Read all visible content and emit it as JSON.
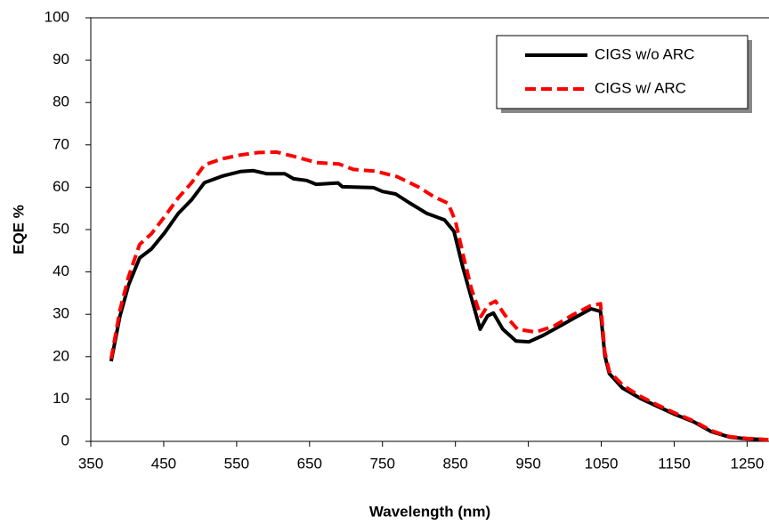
{
  "chart_data": {
    "type": "line",
    "x_label": "Wavelength (nm)",
    "y_label": "EQE %",
    "xlim": [
      350,
      1280
    ],
    "xticks": [
      350,
      450,
      550,
      650,
      750,
      850,
      950,
      1050,
      1150,
      1250
    ],
    "ylim": [
      0,
      100
    ],
    "yticks": [
      0,
      10,
      20,
      30,
      40,
      50,
      60,
      70,
      80,
      90,
      100
    ],
    "legend": "upper right",
    "series": [
      {
        "name": "CIGS w/o ARC",
        "color": "#000000",
        "dash": "solid",
        "x": [
          378,
          390,
          402,
          417,
          433,
          451,
          470,
          488,
          506,
          530,
          555,
          573,
          591,
          616,
          628,
          646,
          659,
          689,
          695,
          738,
          750,
          768,
          787,
          811,
          835,
          848,
          860,
          872,
          884,
          894,
          902,
          915,
          933,
          951,
          970,
          994,
          1018,
          1036,
          1049,
          1055,
          1061,
          1079,
          1104,
          1128,
          1152,
          1177,
          1201,
          1226,
          1250,
          1279
        ],
        "values": [
          18.9,
          29.6,
          37,
          43.3,
          45.4,
          49.2,
          53.8,
          57,
          61.1,
          62.6,
          63.7,
          63.9,
          63.2,
          63.2,
          62,
          61.6,
          60.7,
          61,
          60.1,
          59.9,
          59,
          58.4,
          56.3,
          53.8,
          52.3,
          49.6,
          41.2,
          33.8,
          26.5,
          29.6,
          30.3,
          26.5,
          23.7,
          23.5,
          25,
          27.3,
          29.6,
          31.3,
          30.7,
          20.2,
          16,
          12.6,
          10.1,
          8.2,
          6.3,
          4.6,
          2.3,
          1,
          0.6,
          0.4
        ]
      },
      {
        "name": "CIGS w/ ARC",
        "color": "#ff0000",
        "dash": "dashed",
        "x": [
          378,
          390,
          402,
          417,
          433,
          451,
          470,
          488,
          506,
          530,
          555,
          580,
          605,
          630,
          660,
          690,
          710,
          740,
          770,
          800,
          820,
          840,
          850,
          862,
          872,
          885,
          895,
          905,
          918,
          935,
          960,
          985,
          1010,
          1035,
          1049,
          1055,
          1061,
          1080,
          1104,
          1128,
          1152,
          1177,
          1201,
          1226,
          1250,
          1279
        ],
        "values": [
          19.5,
          31,
          39,
          46.5,
          49,
          53,
          57.5,
          61,
          65.3,
          66.7,
          67.6,
          68.2,
          68.3,
          67.2,
          65.8,
          65.5,
          64.2,
          63.8,
          62.5,
          60,
          57.8,
          56.2,
          52,
          43,
          36,
          29.5,
          32.2,
          33.1,
          29.8,
          26.5,
          25.8,
          27.2,
          29.8,
          32,
          32.5,
          21,
          16.5,
          13.2,
          10.6,
          8.5,
          6.6,
          4.8,
          2.5,
          1.1,
          0.7,
          0.4
        ]
      }
    ]
  }
}
